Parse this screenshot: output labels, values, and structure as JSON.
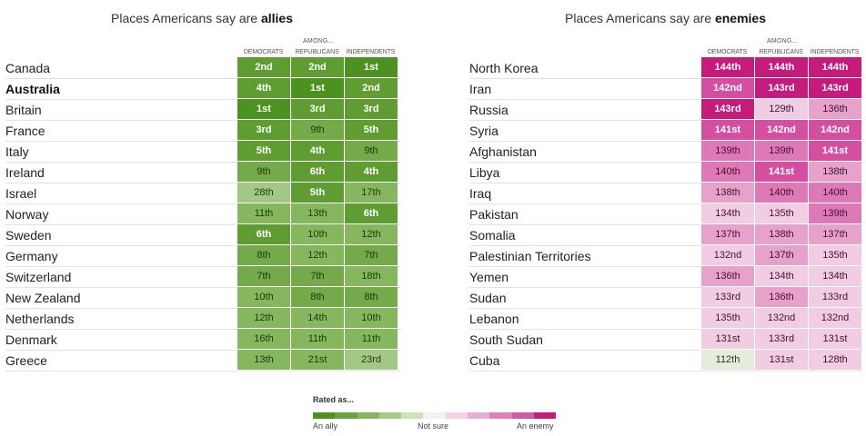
{
  "chart_data": [
    {
      "type": "table",
      "title_prefix": "Places Americans say are ",
      "title_emphasis": "allies",
      "group_label": "AMONG...",
      "columns": [
        "DEMOCRATS",
        "REPUBLICANS",
        "INDEPENDENTS"
      ],
      "rows": [
        {
          "name": "Canada",
          "bold": false,
          "ranks": [
            2,
            2,
            1
          ],
          "labels": [
            "2nd",
            "2nd",
            "1st"
          ]
        },
        {
          "name": "Australia",
          "bold": true,
          "ranks": [
            4,
            1,
            2
          ],
          "labels": [
            "4th",
            "1st",
            "2nd"
          ]
        },
        {
          "name": "Britain",
          "bold": false,
          "ranks": [
            1,
            3,
            3
          ],
          "labels": [
            "1st",
            "3rd",
            "3rd"
          ]
        },
        {
          "name": "France",
          "bold": false,
          "ranks": [
            3,
            9,
            5
          ],
          "labels": [
            "3rd",
            "9th",
            "5th"
          ]
        },
        {
          "name": "Italy",
          "bold": false,
          "ranks": [
            5,
            4,
            9
          ],
          "labels": [
            "5th",
            "4th",
            "9th"
          ]
        },
        {
          "name": "Ireland",
          "bold": false,
          "ranks": [
            9,
            6,
            4
          ],
          "labels": [
            "9th",
            "6th",
            "4th"
          ]
        },
        {
          "name": "Israel",
          "bold": false,
          "ranks": [
            28,
            5,
            17
          ],
          "labels": [
            "28th",
            "5th",
            "17th"
          ]
        },
        {
          "name": "Norway",
          "bold": false,
          "ranks": [
            11,
            13,
            6
          ],
          "labels": [
            "11th",
            "13th",
            "6th"
          ]
        },
        {
          "name": "Sweden",
          "bold": false,
          "ranks": [
            6,
            10,
            12
          ],
          "labels": [
            "6th",
            "10th",
            "12th"
          ]
        },
        {
          "name": "Germany",
          "bold": false,
          "ranks": [
            8,
            12,
            7
          ],
          "labels": [
            "8th",
            "12th",
            "7th"
          ]
        },
        {
          "name": "Switzerland",
          "bold": false,
          "ranks": [
            7,
            7,
            18
          ],
          "labels": [
            "7th",
            "7th",
            "18th"
          ]
        },
        {
          "name": "New Zealand",
          "bold": false,
          "ranks": [
            10,
            8,
            8
          ],
          "labels": [
            "10th",
            "8th",
            "8th"
          ]
        },
        {
          "name": "Netherlands",
          "bold": false,
          "ranks": [
            12,
            14,
            10
          ],
          "labels": [
            "12th",
            "14th",
            "10th"
          ]
        },
        {
          "name": "Denmark",
          "bold": false,
          "ranks": [
            16,
            11,
            11
          ],
          "labels": [
            "16th",
            "11th",
            "11th"
          ]
        },
        {
          "name": "Greece",
          "bold": false,
          "ranks": [
            13,
            21,
            23
          ],
          "labels": [
            "13th",
            "21st",
            "23rd"
          ]
        }
      ]
    },
    {
      "type": "table",
      "title_prefix": "Places Americans say are ",
      "title_emphasis": "enemies",
      "group_label": "AMONG...",
      "columns": [
        "DEMOCRATS",
        "REPUBLICANS",
        "INDEPENDENTS"
      ],
      "rows": [
        {
          "name": "North Korea",
          "bold": false,
          "ranks": [
            144,
            144,
            144
          ],
          "labels": [
            "144th",
            "144th",
            "144th"
          ]
        },
        {
          "name": "Iran",
          "bold": false,
          "ranks": [
            142,
            143,
            143
          ],
          "labels": [
            "142nd",
            "143rd",
            "143rd"
          ]
        },
        {
          "name": "Russia",
          "bold": false,
          "ranks": [
            143,
            129,
            136
          ],
          "labels": [
            "143rd",
            "129th",
            "136th"
          ]
        },
        {
          "name": "Syria",
          "bold": false,
          "ranks": [
            141,
            142,
            142
          ],
          "labels": [
            "141st",
            "142nd",
            "142nd"
          ]
        },
        {
          "name": "Afghanistan",
          "bold": false,
          "ranks": [
            139,
            139,
            141
          ],
          "labels": [
            "139th",
            "139th",
            "141st"
          ]
        },
        {
          "name": "Libya",
          "bold": false,
          "ranks": [
            140,
            141,
            138
          ],
          "labels": [
            "140th",
            "141st",
            "138th"
          ]
        },
        {
          "name": "Iraq",
          "bold": false,
          "ranks": [
            138,
            140,
            140
          ],
          "labels": [
            "138th",
            "140th",
            "140th"
          ]
        },
        {
          "name": "Pakistan",
          "bold": false,
          "ranks": [
            134,
            135,
            139
          ],
          "labels": [
            "134th",
            "135th",
            "139th"
          ]
        },
        {
          "name": "Somalia",
          "bold": false,
          "ranks": [
            137,
            138,
            137
          ],
          "labels": [
            "137th",
            "138th",
            "137th"
          ]
        },
        {
          "name": "Palestinian Territories",
          "bold": false,
          "ranks": [
            132,
            137,
            135
          ],
          "labels": [
            "132nd",
            "137th",
            "135th"
          ]
        },
        {
          "name": "Yemen",
          "bold": false,
          "ranks": [
            136,
            134,
            134
          ],
          "labels": [
            "136th",
            "134th",
            "134th"
          ]
        },
        {
          "name": "Sudan",
          "bold": false,
          "ranks": [
            133,
            136,
            133
          ],
          "labels": [
            "133rd",
            "136th",
            "133rd"
          ]
        },
        {
          "name": "Lebanon",
          "bold": false,
          "ranks": [
            135,
            132,
            132
          ],
          "labels": [
            "135th",
            "132nd",
            "132nd"
          ]
        },
        {
          "name": "South Sudan",
          "bold": false,
          "ranks": [
            131,
            133,
            131
          ],
          "labels": [
            "131st",
            "133rd",
            "131st"
          ]
        },
        {
          "name": "Cuba",
          "bold": false,
          "ranks": [
            112,
            131,
            128
          ],
          "labels": [
            "112th",
            "131st",
            "128th"
          ]
        }
      ]
    }
  ],
  "legend": {
    "title": "Rated as...",
    "left_label": "An ally",
    "mid_label": "Not sure",
    "right_label": "An enemy",
    "colors": [
      "#4d9221",
      "#6aa33c",
      "#88b65e",
      "#a8cb88",
      "#cde2bb",
      "#f2f2f2",
      "#f2d3e6",
      "#e9aed1",
      "#dc82b9",
      "#d05aa5",
      "#c51b7d"
    ]
  },
  "scale_colors": {
    "ally": [
      "#4d9221",
      "#5f9d33",
      "#74aa49",
      "#86b65d",
      "#a3c784"
    ],
    "enemy": [
      "#c51b7d",
      "#d54fa0",
      "#dd79b6",
      "#e7a2cb",
      "#f0cde2"
    ],
    "neutral_light": "#e4eddc"
  }
}
